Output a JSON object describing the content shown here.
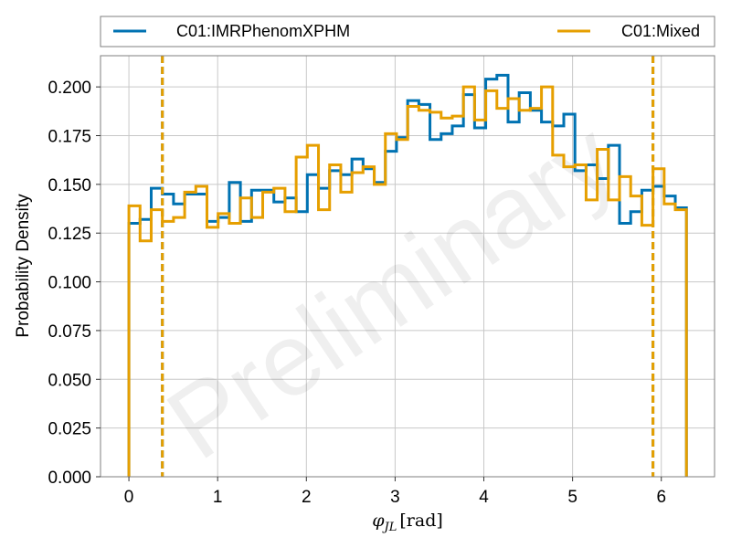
{
  "chart_data": {
    "type": "histogram",
    "title": "",
    "xlabel_symbol": "φ",
    "xlabel_subscript": "JL",
    "xlabel_unit": "[rad]",
    "ylabel": "Probability Density",
    "watermark": "Preliminary",
    "xlim": [
      -0.32,
      6.6
    ],
    "ylim": [
      0.0,
      0.216
    ],
    "xticks": [
      "0",
      "1",
      "2",
      "3",
      "4",
      "5",
      "6"
    ],
    "yticks": [
      "0.000",
      "0.025",
      "0.050",
      "0.075",
      "0.100",
      "0.125",
      "0.150",
      "0.175",
      "0.200"
    ],
    "grid": true,
    "legend_position": "above-plot",
    "bin_edges": [
      0,
      0.1257,
      0.2513,
      0.377,
      0.5027,
      0.6283,
      0.754,
      0.8796,
      1.0053,
      1.131,
      1.2566,
      1.3823,
      1.508,
      1.6336,
      1.7593,
      1.885,
      2.0106,
      2.1363,
      2.2619,
      2.3876,
      2.5133,
      2.6389,
      2.7646,
      2.8903,
      3.0159,
      3.1416,
      3.2673,
      3.3929,
      3.5186,
      3.6442,
      3.7699,
      3.8956,
      4.0212,
      4.1469,
      4.2726,
      4.3982,
      4.5239,
      4.6496,
      4.7752,
      4.9009,
      5.0265,
      5.1522,
      5.2779,
      5.4035,
      5.5292,
      5.6549,
      5.7805,
      5.9062,
      6.0319,
      6.1575,
      6.2832
    ],
    "series": [
      {
        "name": "C01:IMRPhenomXPHM",
        "color": "#0072b2",
        "values": [
          0.13,
          0.132,
          0.148,
          0.145,
          0.14,
          0.145,
          0.145,
          0.131,
          0.133,
          0.151,
          0.131,
          0.147,
          0.147,
          0.141,
          0.143,
          0.136,
          0.155,
          0.148,
          0.157,
          0.155,
          0.163,
          0.158,
          0.151,
          0.167,
          0.174,
          0.193,
          0.191,
          0.173,
          0.176,
          0.18,
          0.196,
          0.179,
          0.204,
          0.206,
          0.182,
          0.197,
          0.188,
          0.182,
          0.18,
          0.186,
          0.157,
          0.16,
          0.153,
          0.17,
          0.13,
          0.136,
          0.147,
          0.149,
          0.144,
          0.138
        ],
        "vlines": [
          0.377,
          5.906
        ]
      },
      {
        "name": "C01:Mixed",
        "color": "#e69f00",
        "values": [
          0.139,
          0.121,
          0.137,
          0.131,
          0.133,
          0.146,
          0.149,
          0.128,
          0.135,
          0.13,
          0.143,
          0.133,
          0.146,
          0.148,
          0.136,
          0.164,
          0.17,
          0.137,
          0.16,
          0.146,
          0.156,
          0.159,
          0.15,
          0.176,
          0.173,
          0.19,
          0.188,
          0.187,
          0.184,
          0.185,
          0.2,
          0.183,
          0.198,
          0.189,
          0.194,
          0.188,
          0.189,
          0.2,
          0.165,
          0.159,
          0.16,
          0.142,
          0.168,
          0.142,
          0.154,
          0.144,
          0.129,
          0.158,
          0.14,
          0.137
        ],
        "vlines": [
          0.377,
          5.906
        ]
      }
    ]
  }
}
